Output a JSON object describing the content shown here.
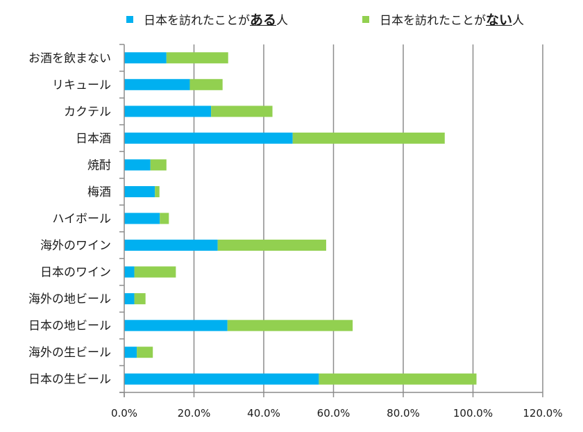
{
  "chart_data": {
    "type": "bar",
    "orientation": "horizontal",
    "stacked": true,
    "title": "",
    "xlabel": "",
    "ylabel": "",
    "xlim": [
      0,
      120
    ],
    "x_ticks": [
      "0.0%",
      "20.0%",
      "40.0%",
      "60.0%",
      "80.0%",
      "100.0%",
      "120.0%"
    ],
    "x_tick_values": [
      0,
      20,
      40,
      60,
      80,
      100,
      120
    ],
    "grid": "vertical",
    "legend_position": "top",
    "categories": [
      "お酒を飲まない",
      "リキュール",
      "カクテル",
      "日本酒",
      "焼酎",
      "梅酒",
      "ハイボール",
      "海外のワイン",
      "日本のワイン",
      "海外の地ビール",
      "日本の地ビール",
      "海外の生ビール",
      "日本の生ビール"
    ],
    "series": [
      {
        "name": "日本を訪れたことがある人",
        "legend_prefix": "日本を訪れたことが",
        "legend_emph": "ある",
        "legend_suffix": "人",
        "color": "#00b0f0",
        "values": [
          12.1,
          18.8,
          24.9,
          48.3,
          7.5,
          8.8,
          10.2,
          26.8,
          2.9,
          2.9,
          29.6,
          3.6,
          55.8
        ]
      },
      {
        "name": "日本を訪れたことがない人",
        "legend_prefix": "日本を訪れたことが",
        "legend_emph": "ない",
        "legend_suffix": "人",
        "color": "#92d050",
        "values": [
          17.7,
          9.4,
          17.6,
          43.6,
          4.6,
          1.3,
          2.6,
          31.1,
          11.9,
          3.2,
          35.9,
          4.6,
          45.2
        ]
      }
    ]
  }
}
